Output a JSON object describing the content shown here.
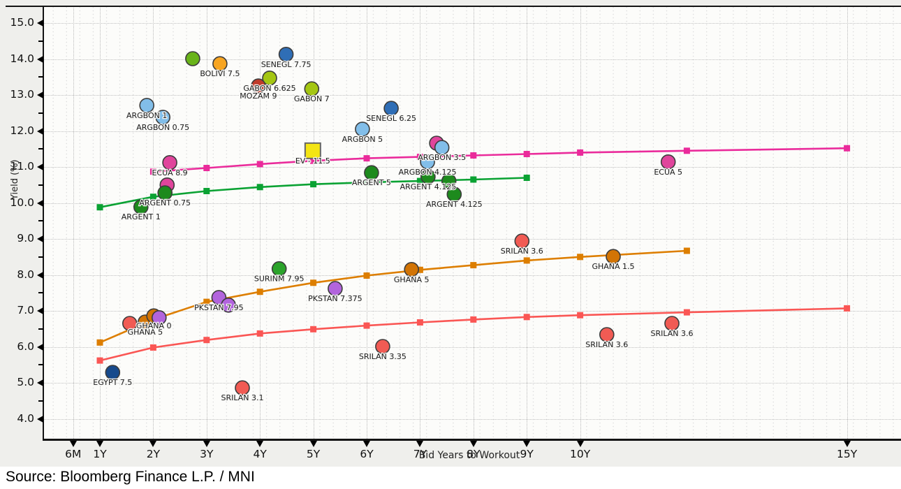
{
  "source_text": "Source: Bloomberg Finance L.P. / MNI",
  "chart_data": {
    "type": "scatter",
    "title": "",
    "xlabel": "Bid Years to Workout",
    "ylabel": "Yield (%)",
    "legend": "none",
    "grid": true,
    "ylim": [
      3.5,
      15.35
    ],
    "xlim_years": [
      0,
      16.1
    ],
    "x_ticks": [
      {
        "label": "6M",
        "v": 0.5
      },
      {
        "label": "1Y",
        "v": 1
      },
      {
        "label": "2Y",
        "v": 2
      },
      {
        "label": "3Y",
        "v": 3
      },
      {
        "label": "4Y",
        "v": 4
      },
      {
        "label": "5Y",
        "v": 5
      },
      {
        "label": "6Y",
        "v": 6
      },
      {
        "label": "7Y",
        "v": 7
      },
      {
        "label": "8Y",
        "v": 8
      },
      {
        "label": "9Y",
        "v": 9
      },
      {
        "label": "10Y",
        "v": 10
      },
      {
        "label": "15Y",
        "v": 15
      }
    ],
    "y_ticks": [
      {
        "label": "15.0",
        "v": 15
      },
      {
        "label": "14.0",
        "v": 14
      },
      {
        "label": "13.0",
        "v": 13
      },
      {
        "label": "12.0",
        "v": 12
      },
      {
        "label": "11.0",
        "v": 11
      },
      {
        "label": "10.0",
        "v": 10
      },
      {
        "label": "9.0",
        "v": 9
      },
      {
        "label": "8.0",
        "v": 8
      },
      {
        "label": "7.0",
        "v": 7
      },
      {
        "label": "6.0",
        "v": 6
      },
      {
        "label": "5.0",
        "v": 5
      },
      {
        "label": "4.0",
        "v": 4
      }
    ],
    "series": [
      {
        "name": "ecuador-fitted-curve",
        "color": "#ea2b9b",
        "points": [
          [
            2,
            10.87
          ],
          [
            3,
            10.97
          ],
          [
            4,
            11.08
          ],
          [
            5,
            11.17
          ],
          [
            6,
            11.24
          ],
          [
            7,
            11.28
          ],
          [
            8,
            11.32
          ],
          [
            9,
            11.36
          ],
          [
            10,
            11.4
          ],
          [
            12,
            11.45
          ],
          [
            15,
            11.52
          ]
        ]
      },
      {
        "name": "argentina-fitted-curve",
        "color": "#0aa233",
        "points": [
          [
            1,
            9.88
          ],
          [
            2,
            10.17
          ],
          [
            3,
            10.33
          ],
          [
            4,
            10.44
          ],
          [
            5,
            10.52
          ],
          [
            6,
            10.57
          ],
          [
            7,
            10.61
          ],
          [
            8,
            10.65
          ],
          [
            9,
            10.7
          ]
        ]
      },
      {
        "name": "ghana-fitted-curve",
        "color": "#dd7e00",
        "points": [
          [
            1,
            6.12
          ],
          [
            2,
            6.76
          ],
          [
            3,
            7.25
          ],
          [
            4,
            7.53
          ],
          [
            5,
            7.78
          ],
          [
            6,
            7.98
          ],
          [
            7,
            8.14
          ],
          [
            8,
            8.27
          ],
          [
            9,
            8.4
          ],
          [
            10,
            8.5
          ],
          [
            12,
            8.67
          ]
        ]
      },
      {
        "name": "srilanka-fitted-curve",
        "color": "#fa5654",
        "points": [
          [
            1,
            5.62
          ],
          [
            2,
            5.98
          ],
          [
            3,
            6.19
          ],
          [
            4,
            6.37
          ],
          [
            5,
            6.49
          ],
          [
            6,
            6.59
          ],
          [
            7,
            6.68
          ],
          [
            8,
            6.76
          ],
          [
            9,
            6.83
          ],
          [
            10,
            6.88
          ],
          [
            12,
            6.96
          ],
          [
            15,
            7.07
          ]
        ]
      }
    ],
    "points": [
      {
        "label": "",
        "x": 2.74,
        "y": 14.01,
        "color": "#69b41a"
      },
      {
        "label": "BOLIVI 7.5",
        "x": 3.25,
        "y": 13.87,
        "color": "#f7a522"
      },
      {
        "label": "SENEGL 7.75",
        "x": 4.49,
        "y": 14.13,
        "color": "#2f6eb6"
      },
      {
        "label": "GABON 6.625",
        "x": 4.18,
        "y": 13.47,
        "color": "#a4c613"
      },
      {
        "label": "MOZAM 9",
        "x": 3.97,
        "y": 13.25,
        "color": "#bf3b2b"
      },
      {
        "label": "GABON 7",
        "x": 4.97,
        "y": 13.17,
        "color": "#a4c613"
      },
      {
        "label": "ARGBON 1",
        "x": 1.88,
        "y": 12.71,
        "color": "#82bee9"
      },
      {
        "label": "ARGBON 0.75",
        "x": 2.18,
        "y": 12.38,
        "color": "#82bee9"
      },
      {
        "label": "SENEGL 6.25",
        "x": 6.46,
        "y": 12.63,
        "color": "#2f6eb6"
      },
      {
        "label": "ARGBON 5",
        "x": 5.92,
        "y": 12.05,
        "color": "#82bee9"
      },
      {
        "label": "",
        "x": 7.31,
        "y": 11.66,
        "color": "#e0459c"
      },
      {
        "label": "ARGBON 3.5",
        "x": 7.41,
        "y": 11.54,
        "color": "#82bee9"
      },
      {
        "label": "ARGBON 4.125",
        "x": 7.14,
        "y": 11.14,
        "color": "#82bee9"
      },
      {
        "label": "ECUA 8.9",
        "x": 2.31,
        "y": 11.12,
        "color": "#e0459c"
      },
      {
        "label": "",
        "x": 2.26,
        "y": 10.5,
        "color": "#e0459c"
      },
      {
        "label": "ARGENT 0.75",
        "x": 2.22,
        "y": 10.28,
        "color": "#1d8a1d"
      },
      {
        "label": "ARGENT 1",
        "x": 1.77,
        "y": 9.89,
        "color": "#1d8a1d"
      },
      {
        "label": "ARGENT 5",
        "x": 6.09,
        "y": 10.84,
        "color": "#1d8a1d"
      },
      {
        "label": "ARGENT 4.125",
        "x": 7.15,
        "y": 10.73,
        "color": "#1d8a1d"
      },
      {
        "label": "",
        "x": 7.54,
        "y": 10.61,
        "color": "#1d8a1d"
      },
      {
        "label": "ARGENT 4.125",
        "x": 7.64,
        "y": 10.24,
        "color": "#1d8a1d"
      },
      {
        "label": "ECUA 5",
        "x": 11.65,
        "y": 11.14,
        "color": "#e0459c"
      },
      {
        "label": "SRILAN 3.6",
        "x": 8.91,
        "y": 8.94,
        "color": "#f15b54"
      },
      {
        "label": "GHANA 1.5",
        "x": 10.62,
        "y": 8.51,
        "color": "#d27405"
      },
      {
        "label": "SURINM 7.95",
        "x": 4.36,
        "y": 8.17,
        "color": "#2ba32b"
      },
      {
        "label": "GHANA 5",
        "x": 6.84,
        "y": 8.15,
        "color": "#d27405"
      },
      {
        "label": "PKSTAN 7.375",
        "x": 5.41,
        "y": 7.62,
        "color": "#b264dd"
      },
      {
        "label": "PKSTAN 7.95",
        "x": 3.23,
        "y": 7.37,
        "color": "#b264dd"
      },
      {
        "label": "",
        "x": 3.41,
        "y": 7.16,
        "color": "#b264dd"
      },
      {
        "label": "",
        "x": 1.56,
        "y": 6.65,
        "color": "#f15b54"
      },
      {
        "label": "GHANA 5",
        "x": 1.85,
        "y": 6.69,
        "color": "#d27405"
      },
      {
        "label": "GHANA 0",
        "x": 2.01,
        "y": 6.86,
        "color": "#d27405"
      },
      {
        "label": "",
        "x": 2.11,
        "y": 6.81,
        "color": "#b264dd"
      },
      {
        "label": "EGYPT 7.5",
        "x": 1.24,
        "y": 5.29,
        "color": "#174a8c"
      },
      {
        "label": "SRILAN 3.35",
        "x": 6.3,
        "y": 6.01,
        "color": "#f15b54"
      },
      {
        "label": "SRILAN 3.1",
        "x": 3.67,
        "y": 4.86,
        "color": "#f15b54"
      },
      {
        "label": "SRILAN 3.6",
        "x": 10.5,
        "y": 6.34,
        "color": "#f15b54"
      },
      {
        "label": "SRILAN 3.6",
        "x": 11.72,
        "y": 6.65,
        "color": "#f15b54"
      }
    ],
    "special_points": [
      {
        "label": "EV - 11.5",
        "x": 4.99,
        "y": 11.45,
        "marker": "square",
        "color": "#f4e513"
      }
    ]
  }
}
